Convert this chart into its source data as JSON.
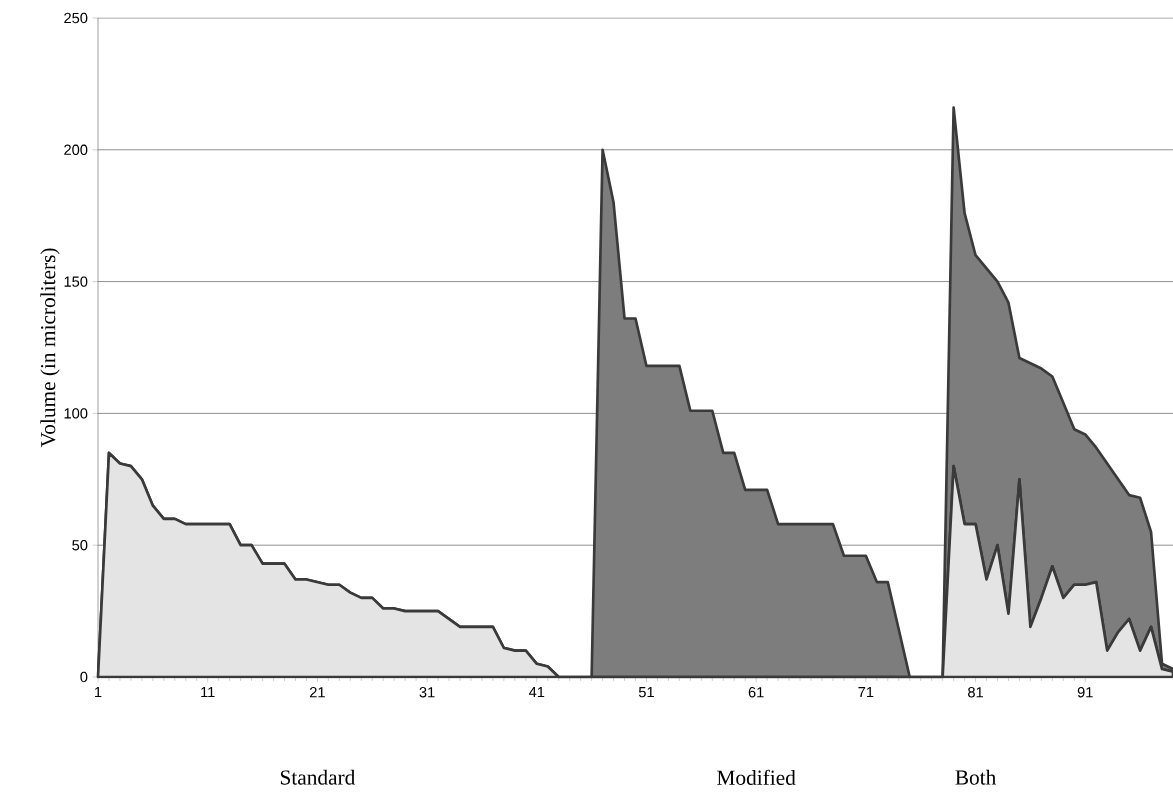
{
  "chart_data": {
    "type": "area",
    "stacked": true,
    "ylabel": "Volume (in microliters)",
    "x": [
      1,
      2,
      3,
      4,
      5,
      6,
      7,
      8,
      9,
      10,
      11,
      12,
      13,
      14,
      15,
      16,
      17,
      18,
      19,
      20,
      21,
      22,
      23,
      24,
      25,
      26,
      27,
      28,
      29,
      30,
      31,
      32,
      33,
      34,
      35,
      36,
      37,
      38,
      39,
      40,
      41,
      42,
      43,
      44,
      45,
      46,
      47,
      48,
      49,
      50,
      51,
      52,
      53,
      54,
      55,
      56,
      57,
      58,
      59,
      60,
      61,
      62,
      63,
      64,
      65,
      66,
      67,
      68,
      69,
      70,
      71,
      72,
      73,
      74,
      75,
      76,
      77,
      78,
      79,
      80,
      81,
      82,
      83,
      84,
      85,
      86,
      87,
      88,
      89,
      90,
      91,
      92,
      93,
      94,
      95,
      96,
      97,
      98,
      99
    ],
    "series": [
      {
        "color": "#e4e4e4",
        "values": [
          0,
          85,
          81,
          80,
          75,
          65,
          60,
          60,
          58,
          58,
          58,
          58,
          58,
          50,
          50,
          43,
          43,
          43,
          37,
          37,
          36,
          35,
          35,
          32,
          30,
          30,
          26,
          26,
          25,
          25,
          25,
          25,
          22,
          19,
          19,
          19,
          19,
          11,
          10,
          10,
          5,
          4,
          0,
          0,
          0,
          0,
          0,
          0,
          0,
          0,
          0,
          0,
          0,
          0,
          0,
          0,
          0,
          0,
          0,
          0,
          0,
          0,
          0,
          0,
          0,
          0,
          0,
          0,
          0,
          0,
          0,
          0,
          0,
          0,
          0,
          0,
          0,
          0,
          80,
          58,
          58,
          37,
          50,
          24,
          75,
          19,
          30,
          42,
          30,
          35,
          35,
          36,
          10,
          17,
          22,
          10,
          19,
          3,
          2
        ]
      },
      {
        "color": "#7d7d7d",
        "values": [
          0,
          0,
          0,
          0,
          0,
          0,
          0,
          0,
          0,
          0,
          0,
          0,
          0,
          0,
          0,
          0,
          0,
          0,
          0,
          0,
          0,
          0,
          0,
          0,
          0,
          0,
          0,
          0,
          0,
          0,
          0,
          0,
          0,
          0,
          0,
          0,
          0,
          0,
          0,
          0,
          0,
          0,
          0,
          0,
          0,
          0,
          200,
          180,
          136,
          136,
          118,
          118,
          118,
          118,
          101,
          101,
          101,
          85,
          85,
          71,
          71,
          71,
          58,
          58,
          58,
          58,
          58,
          58,
          46,
          46,
          46,
          36,
          36,
          18,
          0,
          0,
          0,
          0,
          136,
          118,
          102,
          118,
          100,
          118,
          46,
          100,
          87,
          72,
          74,
          59,
          57,
          51,
          71,
          58,
          47,
          58,
          36,
          2,
          1
        ]
      }
    ],
    "xlim": [
      1,
      99
    ],
    "ylim": [
      0,
      250
    ],
    "xticks": [
      1,
      11,
      21,
      31,
      41,
      51,
      61,
      71,
      81,
      91
    ],
    "yticks": [
      0,
      50,
      100,
      150,
      200,
      250
    ],
    "grid": "y",
    "marker": "none",
    "line_style": "solid",
    "annotations": [
      "Standard",
      "Modified",
      "Both"
    ]
  }
}
